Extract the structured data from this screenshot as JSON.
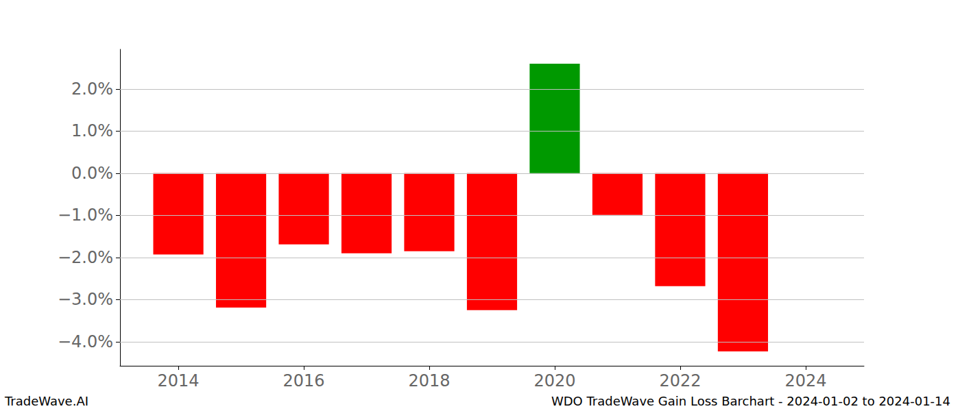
{
  "chart_data": {
    "type": "bar",
    "x": [
      2014,
      2015,
      2016,
      2017,
      2018,
      2019,
      2020,
      2021,
      2022,
      2023
    ],
    "values": [
      -1.93,
      -3.19,
      -1.69,
      -1.9,
      -1.85,
      -3.25,
      2.6,
      -0.99,
      -2.68,
      -4.23
    ],
    "colors": [
      "#ff0000",
      "#ff0000",
      "#ff0000",
      "#ff0000",
      "#ff0000",
      "#ff0000",
      "#009900",
      "#ff0000",
      "#ff0000",
      "#ff0000"
    ],
    "xlim": [
      2013.07,
      2024.93
    ],
    "xticks": [
      2014,
      2016,
      2018,
      2020,
      2022,
      2024
    ],
    "ylim": [
      -4.57,
      2.94
    ],
    "yticks": [
      {
        "value": -4,
        "label": "−4.0%"
      },
      {
        "value": -3,
        "label": "−3.0%"
      },
      {
        "value": -2,
        "label": "−2.0%"
      },
      {
        "value": -1,
        "label": "−1.0%"
      },
      {
        "value": 0,
        "label": "0.0%"
      },
      {
        "value": 1,
        "label": "1.0%"
      },
      {
        "value": 2,
        "label": "2.0%"
      }
    ],
    "grid": true,
    "annotations": [
      "TradeWave.AI",
      "WDO TradeWave Gain Loss Barchart - 2024-01-02 to 2024-01-14"
    ]
  }
}
